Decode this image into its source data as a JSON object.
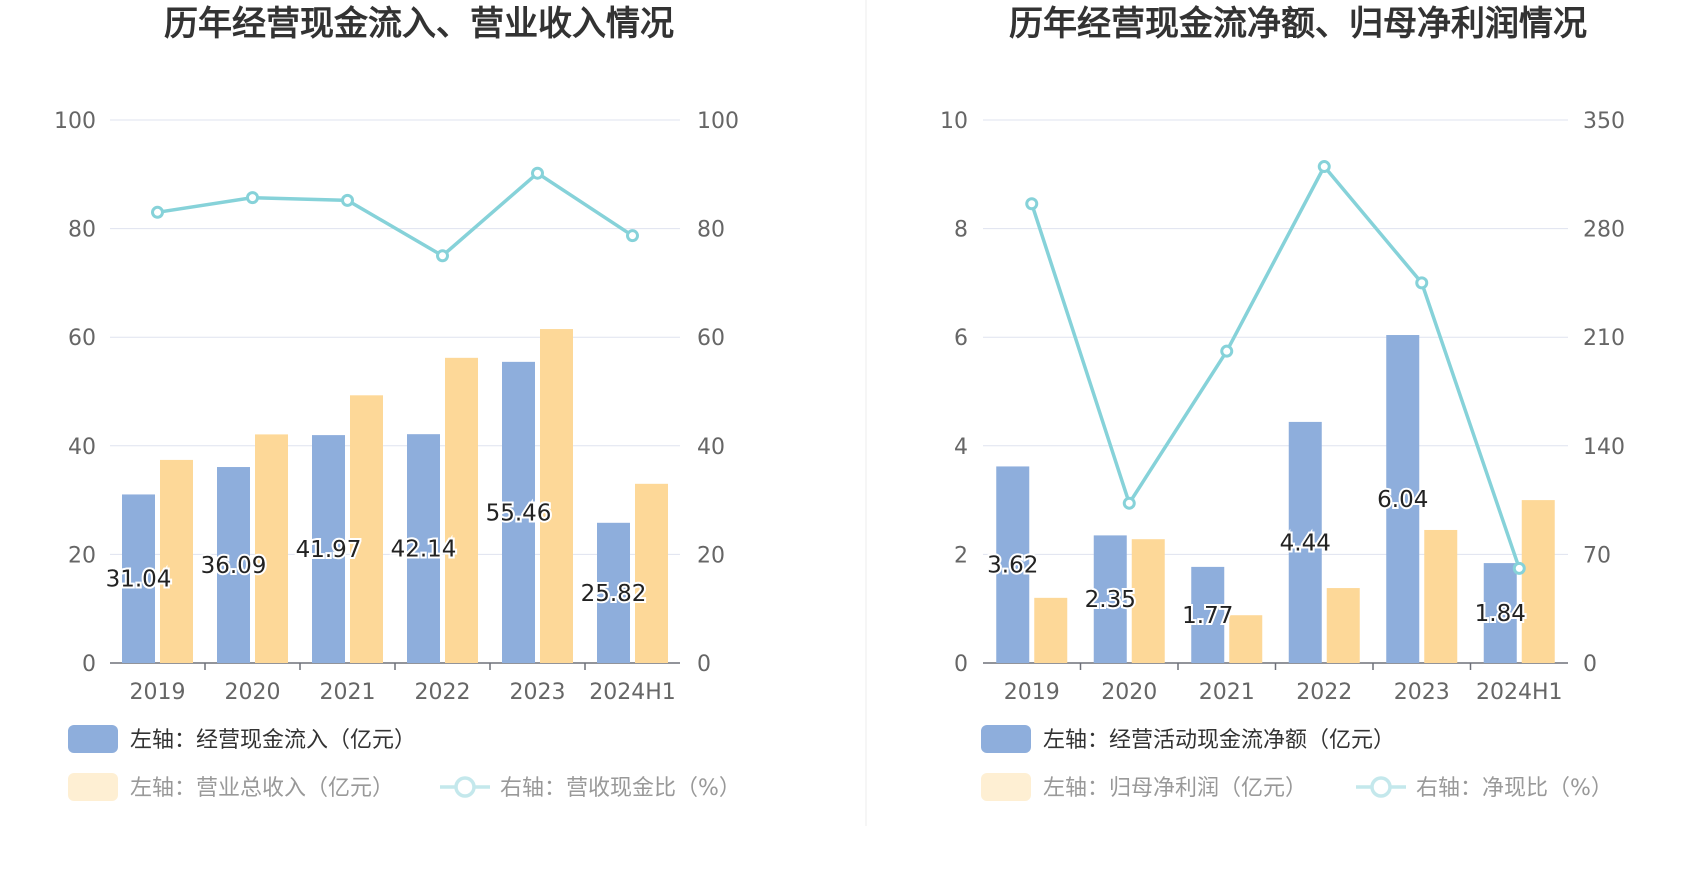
{
  "chart_data": [
    {
      "type": "bar",
      "title": "历年经营现金流入、营业收入情况",
      "categories": [
        "2019",
        "2020",
        "2021",
        "2022",
        "2023",
        "2024H1"
      ],
      "left_axis": {
        "ylim": [
          0,
          100
        ],
        "ticks": [
          "0",
          "20",
          "40",
          "60",
          "80",
          "100"
        ]
      },
      "right_axis": {
        "ylim": [
          0,
          100
        ],
        "ticks": [
          "0",
          "20",
          "40",
          "60",
          "80",
          "100"
        ]
      },
      "series": [
        {
          "name": "左轴：经营现金流入（亿元）",
          "kind": "bar",
          "axis": "left",
          "color": "#8eaedc",
          "values": [
            31.04,
            36.09,
            41.97,
            42.14,
            55.46,
            25.82
          ],
          "labels": [
            "31.04",
            "36.09",
            "41.97",
            "42.14",
            "55.46",
            "25.82"
          ]
        },
        {
          "name": "左轴：营业总收入（亿元）",
          "kind": "bar",
          "axis": "left",
          "color": "#fdd898",
          "values": [
            37.4,
            42.1,
            49.3,
            56.2,
            61.5,
            33.0
          ]
        },
        {
          "name": "右轴：营收现金比（%）",
          "kind": "line",
          "axis": "right",
          "color": "#86d2d9",
          "values": [
            83.0,
            85.7,
            85.2,
            75.0,
            90.2,
            78.7
          ]
        }
      ],
      "legend": {
        "row1": [
          "左轴：经营现金流入（亿元）"
        ],
        "row2": [
          "左轴：营业总收入（亿元）",
          "右轴：营收现金比（%）"
        ]
      }
    },
    {
      "type": "bar",
      "title": "历年经营现金流净额、归母净利润情况",
      "categories": [
        "2019",
        "2020",
        "2021",
        "2022",
        "2023",
        "2024H1"
      ],
      "left_axis": {
        "ylim": [
          0,
          10
        ],
        "ticks": [
          "0",
          "2",
          "4",
          "6",
          "8",
          "10"
        ]
      },
      "right_axis": {
        "ylim": [
          0,
          350
        ],
        "ticks": [
          "0",
          "70",
          "140",
          "210",
          "280",
          "350"
        ]
      },
      "series": [
        {
          "name": "左轴：经营活动现金流净额（亿元）",
          "kind": "bar",
          "axis": "left",
          "color": "#8eaedc",
          "values": [
            3.62,
            2.35,
            1.77,
            4.44,
            6.04,
            1.84
          ],
          "labels": [
            "3.62",
            "2.35",
            "1.77",
            "4.44",
            "6.04",
            "1.84"
          ]
        },
        {
          "name": "左轴：归母净利润（亿元）",
          "kind": "bar",
          "axis": "left",
          "color": "#fdd898",
          "values": [
            1.2,
            2.28,
            0.88,
            1.38,
            2.45,
            3.0
          ]
        },
        {
          "name": "右轴：净现比（%）",
          "kind": "line",
          "axis": "right",
          "color": "#86d2d9",
          "values": [
            296,
            103,
            201,
            320,
            245,
            61
          ]
        }
      ],
      "legend": {
        "row1": [
          "左轴：经营活动现金流净额（亿元）"
        ],
        "row2": [
          "左轴：归母净利润（亿元）",
          "右轴：净现比（%）"
        ]
      }
    }
  ]
}
